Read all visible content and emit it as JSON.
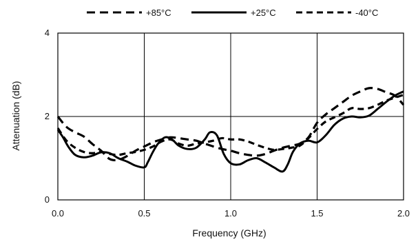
{
  "chart_data": {
    "type": "line",
    "xlabel": "Frequency (GHz)",
    "ylabel": "Attenuation (dB)",
    "xlim": [
      0.0,
      2.0
    ],
    "ylim": [
      0,
      4
    ],
    "x_ticks": [
      "0.0",
      "0.5",
      "1.0",
      "1.5",
      "2.0"
    ],
    "y_ticks": [
      "0",
      "2",
      "4"
    ],
    "grid": true,
    "legend_position": "top",
    "series": [
      {
        "name": "+85°C",
        "style": "long-dash",
        "color": "#000000",
        "points": [
          [
            0.0,
            2.0
          ],
          [
            0.05,
            1.75
          ],
          [
            0.1,
            1.62
          ],
          [
            0.15,
            1.52
          ],
          [
            0.2,
            1.34
          ],
          [
            0.25,
            1.18
          ],
          [
            0.3,
            0.98
          ],
          [
            0.35,
            0.96
          ],
          [
            0.4,
            1.05
          ],
          [
            0.45,
            1.18
          ],
          [
            0.5,
            1.28
          ],
          [
            0.55,
            1.38
          ],
          [
            0.6,
            1.45
          ],
          [
            0.65,
            1.5
          ],
          [
            0.7,
            1.48
          ],
          [
            0.75,
            1.45
          ],
          [
            0.8,
            1.42
          ],
          [
            0.85,
            1.35
          ],
          [
            0.9,
            1.28
          ],
          [
            0.95,
            1.22
          ],
          [
            1.0,
            1.18
          ],
          [
            1.05,
            1.12
          ],
          [
            1.1,
            1.08
          ],
          [
            1.15,
            1.06
          ],
          [
            1.2,
            1.1
          ],
          [
            1.25,
            1.18
          ],
          [
            1.3,
            1.25
          ],
          [
            1.35,
            1.3
          ],
          [
            1.4,
            1.35
          ],
          [
            1.45,
            1.5
          ],
          [
            1.5,
            1.85
          ],
          [
            1.55,
            2.05
          ],
          [
            1.6,
            2.2
          ],
          [
            1.65,
            2.35
          ],
          [
            1.7,
            2.5
          ],
          [
            1.75,
            2.6
          ],
          [
            1.8,
            2.68
          ],
          [
            1.85,
            2.66
          ],
          [
            1.9,
            2.58
          ],
          [
            1.95,
            2.5
          ],
          [
            2.0,
            2.28
          ]
        ]
      },
      {
        "name": "+25°C",
        "style": "solid",
        "color": "#000000",
        "points": [
          [
            0.0,
            1.68
          ],
          [
            0.03,
            1.5
          ],
          [
            0.06,
            1.28
          ],
          [
            0.1,
            1.08
          ],
          [
            0.15,
            1.02
          ],
          [
            0.2,
            1.06
          ],
          [
            0.25,
            1.14
          ],
          [
            0.3,
            1.12
          ],
          [
            0.35,
            1.0
          ],
          [
            0.4,
            0.92
          ],
          [
            0.45,
            0.82
          ],
          [
            0.5,
            0.78
          ],
          [
            0.52,
            0.9
          ],
          [
            0.55,
            1.15
          ],
          [
            0.58,
            1.35
          ],
          [
            0.62,
            1.5
          ],
          [
            0.66,
            1.45
          ],
          [
            0.7,
            1.3
          ],
          [
            0.75,
            1.22
          ],
          [
            0.8,
            1.25
          ],
          [
            0.85,
            1.45
          ],
          [
            0.88,
            1.62
          ],
          [
            0.92,
            1.55
          ],
          [
            0.96,
            1.1
          ],
          [
            1.0,
            0.88
          ],
          [
            1.05,
            0.85
          ],
          [
            1.1,
            0.95
          ],
          [
            1.15,
            1.0
          ],
          [
            1.2,
            0.9
          ],
          [
            1.25,
            0.78
          ],
          [
            1.3,
            0.68
          ],
          [
            1.33,
            0.85
          ],
          [
            1.36,
            1.15
          ],
          [
            1.4,
            1.35
          ],
          [
            1.45,
            1.42
          ],
          [
            1.5,
            1.38
          ],
          [
            1.55,
            1.55
          ],
          [
            1.6,
            1.8
          ],
          [
            1.65,
            1.95
          ],
          [
            1.7,
            2.0
          ],
          [
            1.75,
            1.98
          ],
          [
            1.8,
            2.02
          ],
          [
            1.85,
            2.18
          ],
          [
            1.9,
            2.35
          ],
          [
            1.95,
            2.5
          ],
          [
            2.0,
            2.6
          ]
        ]
      },
      {
        "name": "-40°C",
        "style": "medium-dash",
        "color": "#000000",
        "points": [
          [
            0.0,
            1.72
          ],
          [
            0.05,
            1.42
          ],
          [
            0.1,
            1.25
          ],
          [
            0.15,
            1.15
          ],
          [
            0.2,
            1.12
          ],
          [
            0.25,
            1.15
          ],
          [
            0.3,
            1.1
          ],
          [
            0.35,
            1.08
          ],
          [
            0.4,
            1.12
          ],
          [
            0.45,
            1.15
          ],
          [
            0.5,
            1.2
          ],
          [
            0.55,
            1.28
          ],
          [
            0.6,
            1.4
          ],
          [
            0.65,
            1.45
          ],
          [
            0.7,
            1.35
          ],
          [
            0.75,
            1.3
          ],
          [
            0.8,
            1.35
          ],
          [
            0.85,
            1.38
          ],
          [
            0.9,
            1.42
          ],
          [
            0.95,
            1.48
          ],
          [
            1.0,
            1.45
          ],
          [
            1.05,
            1.45
          ],
          [
            1.1,
            1.4
          ],
          [
            1.15,
            1.32
          ],
          [
            1.2,
            1.25
          ],
          [
            1.25,
            1.2
          ],
          [
            1.3,
            1.22
          ],
          [
            1.35,
            1.25
          ],
          [
            1.4,
            1.3
          ],
          [
            1.45,
            1.48
          ],
          [
            1.5,
            1.7
          ],
          [
            1.55,
            1.88
          ],
          [
            1.6,
            1.98
          ],
          [
            1.65,
            2.08
          ],
          [
            1.7,
            2.2
          ],
          [
            1.75,
            2.18
          ],
          [
            1.8,
            2.2
          ],
          [
            1.85,
            2.28
          ],
          [
            1.9,
            2.38
          ],
          [
            1.95,
            2.45
          ],
          [
            2.0,
            2.52
          ]
        ]
      }
    ]
  }
}
